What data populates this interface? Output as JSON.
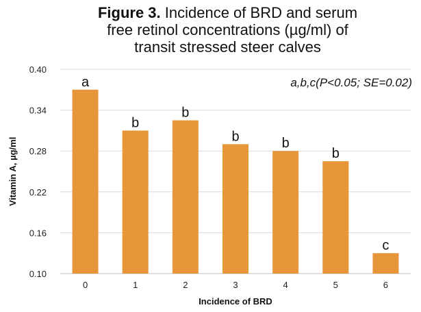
{
  "title": {
    "label": "Figure 3.",
    "line1": "Incidence of BRD and serum",
    "line2": "free retinol concentrations (µg/ml) of",
    "line3": "transit stressed steer calves"
  },
  "chart_data": {
    "type": "bar",
    "categories": [
      "0",
      "1",
      "2",
      "3",
      "4",
      "5",
      "6"
    ],
    "values": [
      0.37,
      0.31,
      0.325,
      0.29,
      0.28,
      0.265,
      0.13
    ],
    "bar_labels": [
      "a",
      "b",
      "b",
      "b",
      "b",
      "b",
      "c"
    ],
    "title": "Figure 3. Incidence of BRD and serum free retinol concentrations (µg/ml) of transit stressed steer calves",
    "xlabel": "Incidence of BRD",
    "ylabel": "Vitamin A, µg/ml",
    "ylim": [
      0.1,
      0.4
    ],
    "yticks": [
      "0.10",
      "0.16",
      "0.22",
      "0.28",
      "0.34",
      "0.40"
    ],
    "annotation": "a,b,c(P<0.05; SE=0.02)",
    "grid": true,
    "bar_color": "#E8963A",
    "grid_color": "#D9D9D9"
  }
}
